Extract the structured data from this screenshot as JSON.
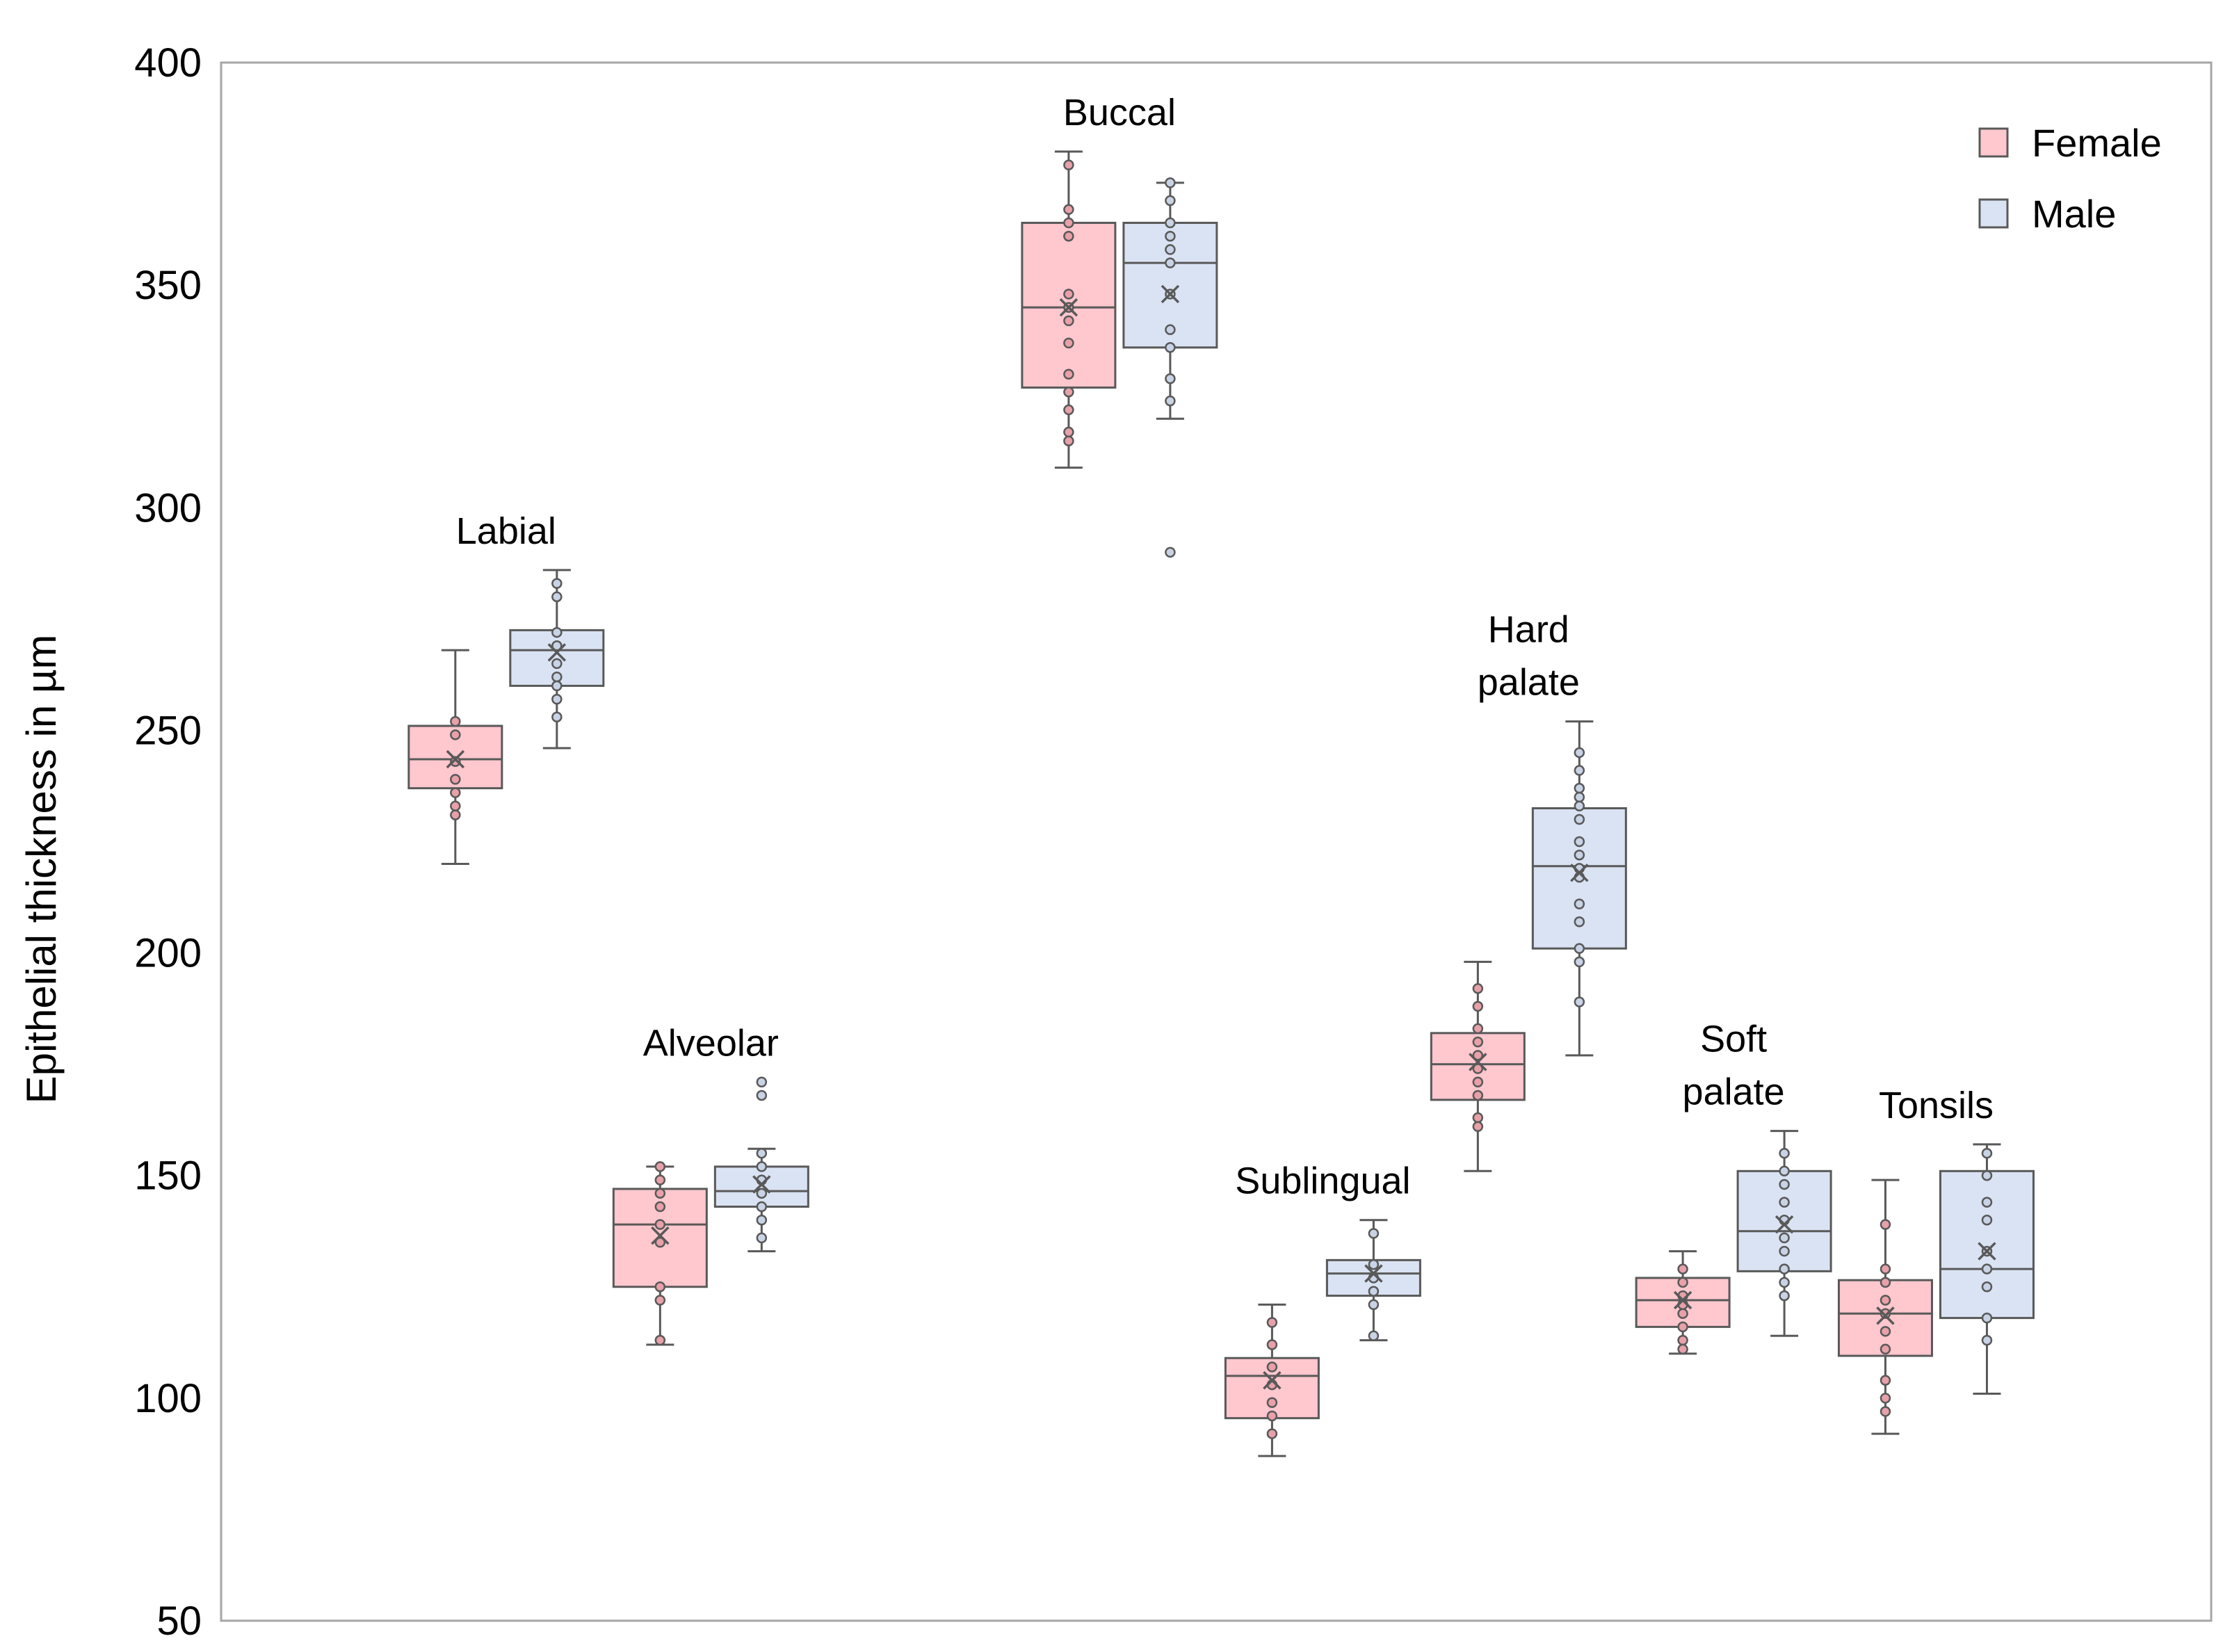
{
  "chart_data": {
    "type": "box",
    "title": "",
    "xlabel": "",
    "ylabel": "Epithelial thickness in µm",
    "ylim": [
      50,
      400
    ],
    "yticks": [
      50,
      100,
      150,
      200,
      250,
      300,
      350,
      400
    ],
    "grid": false,
    "legend_position": "top-right",
    "series": [
      {
        "name": "Female",
        "color": "#FFC7CE"
      },
      {
        "name": "Male",
        "color": "#DAE3F3"
      }
    ],
    "groups": [
      {
        "label": [
          "Labial"
        ],
        "boxes": [
          {
            "series": "Female",
            "min": 220,
            "q1": 237,
            "median": 243.5,
            "q3": 251,
            "max": 268,
            "mean": 243.5,
            "points": [
              252,
              249,
              243,
              239,
              236,
              233,
              231
            ]
          },
          {
            "series": "Male",
            "min": 246,
            "q1": 260,
            "median": 268,
            "q3": 272.5,
            "max": 286,
            "mean": 267.5,
            "points": [
              283,
              280,
              272,
              269,
              265,
              262,
              260,
              257,
              253
            ]
          }
        ]
      },
      {
        "label": [
          "Alveolar"
        ],
        "boxes": [
          {
            "series": "Female",
            "min": 112,
            "q1": 125,
            "median": 139,
            "q3": 147,
            "max": 152,
            "mean": 136.5,
            "points": [
              152,
              149,
              146,
              143,
              139,
              135,
              125,
              122,
              113
            ]
          },
          {
            "series": "Male",
            "min": 133,
            "q1": 143,
            "median": 146.5,
            "q3": 152,
            "max": 156,
            "mean": 148,
            "points": [
              171,
              168,
              155,
              152,
              149,
              146,
              143,
              140,
              136
            ]
          }
        ]
      },
      {
        "label": [
          "Buccal"
        ],
        "boxes": [
          {
            "series": "Female",
            "min": 309,
            "q1": 327,
            "median": 345,
            "q3": 364,
            "max": 380,
            "mean": 345,
            "points": [
              377,
              367,
              364,
              361,
              348,
              345,
              342,
              337,
              330,
              326,
              322,
              317,
              315
            ]
          },
          {
            "series": "Male",
            "min": 320,
            "q1": 336,
            "median": 355,
            "q3": 364,
            "max": 373,
            "mean": 348,
            "points": [
              373,
              369,
              364,
              361,
              358,
              355,
              348,
              340,
              336,
              329,
              324,
              290
            ]
          }
        ]
      },
      {
        "label": [
          "Sublingual"
        ],
        "boxes": [
          {
            "series": "Female",
            "min": 87,
            "q1": 95.5,
            "median": 105,
            "q3": 109,
            "max": 121,
            "mean": 104,
            "points": [
              117,
              112,
              107,
              103,
              99,
              96,
              92
            ]
          },
          {
            "series": "Male",
            "min": 113,
            "q1": 123,
            "median": 128,
            "q3": 131,
            "max": 140,
            "mean": 128,
            "points": [
              137,
              130,
              127,
              124,
              121,
              114
            ]
          }
        ]
      },
      {
        "label": [
          "Hard",
          "palate"
        ],
        "boxes": [
          {
            "series": "Female",
            "min": 151,
            "q1": 167,
            "median": 175,
            "q3": 182,
            "max": 198,
            "mean": 175.5,
            "points": [
              192,
              188,
              183,
              180,
              177,
              174,
              171,
              168,
              163,
              161
            ]
          },
          {
            "series": "Male",
            "min": 177,
            "q1": 201,
            "median": 219.5,
            "q3": 232.5,
            "max": 252,
            "mean": 218,
            "points": [
              245,
              241,
              237,
              235,
              233,
              230,
              225,
              222,
              219,
              217,
              211,
              207,
              201,
              198,
              189
            ]
          }
        ]
      },
      {
        "label": [
          "Soft",
          "palate"
        ],
        "boxes": [
          {
            "series": "Female",
            "min": 110,
            "q1": 116,
            "median": 122,
            "q3": 127,
            "max": 133,
            "mean": 122,
            "points": [
              129,
              126,
              123,
              121,
              119,
              116,
              113,
              111
            ]
          },
          {
            "series": "Male",
            "min": 114,
            "q1": 128.5,
            "median": 137.5,
            "q3": 151,
            "max": 160,
            "mean": 139,
            "points": [
              155,
              151,
              148,
              144,
              140,
              136,
              133,
              129,
              126,
              123
            ]
          }
        ]
      },
      {
        "label": [
          "Tonsils"
        ],
        "boxes": [
          {
            "series": "Female",
            "min": 92,
            "q1": 109.5,
            "median": 119,
            "q3": 126.5,
            "max": 149,
            "mean": 118.5,
            "points": [
              139,
              129,
              126,
              122,
              119,
              115,
              111,
              104,
              100,
              97
            ]
          },
          {
            "series": "Male",
            "min": 101,
            "q1": 118,
            "median": 129,
            "q3": 151,
            "max": 157,
            "mean": 133,
            "points": [
              155,
              150,
              144,
              140,
              133,
              129,
              125,
              118,
              113
            ]
          }
        ]
      }
    ]
  }
}
